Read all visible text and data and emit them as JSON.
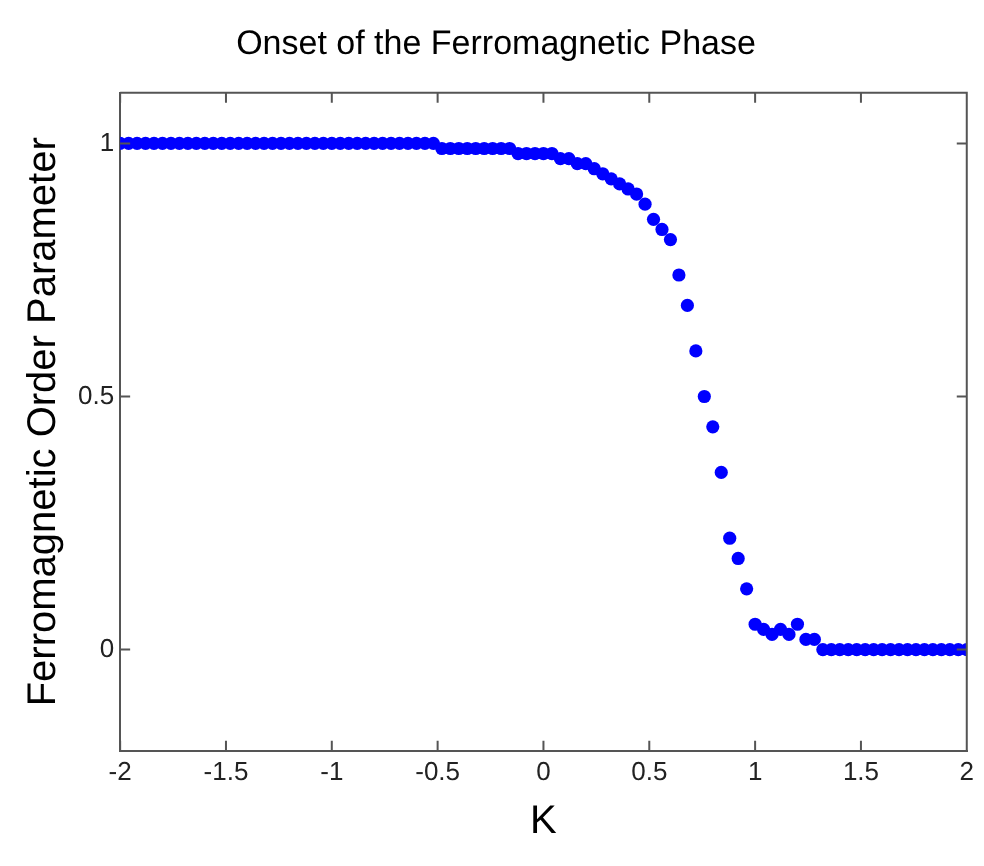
{
  "chart_data": {
    "type": "scatter",
    "title": "Onset of the Ferromagnetic Phase",
    "xlabel": "K",
    "ylabel": "Ferromagnetic Order Parameter",
    "x": [
      -2,
      -1.96,
      -1.92,
      -1.88,
      -1.84,
      -1.8,
      -1.76,
      -1.72,
      -1.68,
      -1.64,
      -1.6,
      -1.56,
      -1.52,
      -1.48,
      -1.44,
      -1.4,
      -1.36,
      -1.32,
      -1.28,
      -1.24,
      -1.2,
      -1.16,
      -1.12,
      -1.08,
      -1.04,
      -1,
      -0.96,
      -0.92,
      -0.88,
      -0.84,
      -0.8,
      -0.76,
      -0.72,
      -0.68,
      -0.64,
      -0.6,
      -0.56,
      -0.52,
      -0.48,
      -0.44,
      -0.4,
      -0.36,
      -0.32,
      -0.28,
      -0.24,
      -0.2,
      -0.16,
      -0.12,
      -0.08,
      -0.04,
      0,
      0.04,
      0.08,
      0.12,
      0.16,
      0.2,
      0.24,
      0.28,
      0.32,
      0.36,
      0.4,
      0.44,
      0.48,
      0.52,
      0.56,
      0.6,
      0.64,
      0.68,
      0.72,
      0.76,
      0.8,
      0.84,
      0.88,
      0.92,
      0.96,
      1,
      1.04,
      1.08,
      1.12,
      1.16,
      1.2,
      1.24,
      1.28,
      1.32,
      1.36,
      1.4,
      1.44,
      1.48,
      1.52,
      1.56,
      1.6,
      1.64,
      1.68,
      1.72,
      1.76,
      1.8,
      1.84,
      1.88,
      1.92,
      1.96,
      2
    ],
    "series": [
      {
        "color": "#0000ff",
        "values": [
          1,
          1,
          1,
          1,
          1,
          1,
          1,
          1,
          1,
          1,
          1,
          1,
          1,
          1,
          1,
          1,
          1,
          1,
          1,
          1,
          1,
          1,
          1,
          1,
          1,
          1,
          1,
          1,
          1,
          1,
          1,
          1,
          1,
          1,
          1,
          1,
          1,
          1,
          0.99,
          0.99,
          0.99,
          0.99,
          0.99,
          0.99,
          0.99,
          0.99,
          0.99,
          0.98,
          0.98,
          0.98,
          0.98,
          0.98,
          0.97,
          0.97,
          0.96,
          0.96,
          0.95,
          0.94,
          0.93,
          0.92,
          0.91,
          0.9,
          0.88,
          0.85,
          0.83,
          0.81,
          0.74,
          0.68,
          0.59,
          0.5,
          0.44,
          0.35,
          0.22,
          0.18,
          0.12,
          0.05,
          0.04,
          0.03,
          0.04,
          0.03,
          0.05,
          0.02,
          0.02,
          0,
          0,
          0,
          0,
          0,
          0,
          0,
          0,
          0,
          0,
          0,
          0,
          0,
          0,
          0,
          0,
          0,
          0
        ]
      }
    ],
    "xlim": [
      -2,
      2
    ],
    "xticks": [
      -2,
      -1.5,
      -1,
      -0.5,
      0,
      0.5,
      1,
      1.5,
      2
    ],
    "ylim": [
      -0.2,
      1.1
    ],
    "yticks": [
      0,
      0.5,
      1
    ],
    "marker": "circle",
    "grid": false,
    "legend": false
  }
}
